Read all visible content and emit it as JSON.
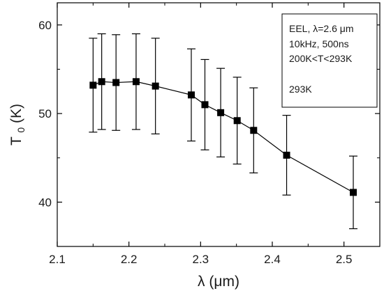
{
  "chart_data": {
    "type": "scatter",
    "xlabel": "λ (μm)",
    "ylabel": "T0 (K)",
    "ylabel_main": "T",
    "ylabel_sub": "0",
    "ylabel_unit": " (K)",
    "xlim": [
      2.1,
      2.55
    ],
    "ylim": [
      35,
      62.5
    ],
    "x_ticks": [
      2.1,
      2.2,
      2.3,
      2.4,
      2.5
    ],
    "x_tick_labels": [
      "2.1",
      "2.2",
      "2.3",
      "2.4",
      "2.5"
    ],
    "y_ticks": [
      40,
      50,
      60
    ],
    "y_tick_labels": [
      "40",
      "50",
      "60"
    ],
    "grid": false,
    "legend_placement": "top-right",
    "annotation_lines": [
      "EEL, λ=2.6 μm",
      "10kHz, 500ns",
      "200K<T<293K",
      "",
      "293K"
    ],
    "series": [
      {
        "x": [
          2.15,
          2.162,
          2.182,
          2.21,
          2.237,
          2.287,
          2.306,
          2.328,
          2.351,
          2.374,
          2.42,
          2.513
        ],
        "y": [
          53.2,
          53.6,
          53.5,
          53.6,
          53.1,
          52.1,
          51.0,
          50.1,
          49.2,
          48.1,
          45.3,
          41.1
        ],
        "y_err": [
          5.3,
          5.4,
          5.4,
          5.4,
          5.4,
          5.2,
          5.1,
          5.0,
          4.9,
          4.8,
          4.5,
          4.1
        ]
      }
    ]
  }
}
